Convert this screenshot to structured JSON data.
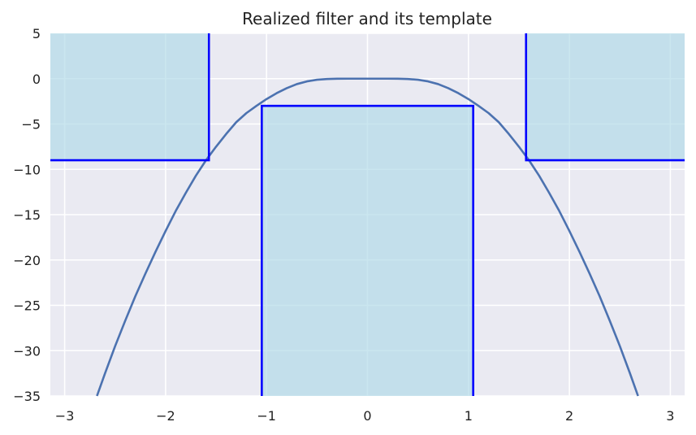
{
  "chart_data": {
    "type": "line",
    "title": "Realized filter and its template",
    "xlabel": "",
    "ylabel": "",
    "xlim": [
      -3.14159,
      3.14159
    ],
    "ylim": [
      -35,
      5
    ],
    "x_ticks": [
      -3,
      -2,
      -1,
      0,
      1,
      2,
      3
    ],
    "x_tick_labels": [
      "−3",
      "−2",
      "−1",
      "0",
      "1",
      "2",
      "3"
    ],
    "y_ticks": [
      5,
      0,
      -5,
      -10,
      -15,
      -20,
      -25,
      -30,
      -35
    ],
    "y_tick_labels": [
      "5",
      "0",
      "−5",
      "−10",
      "−15",
      "−20",
      "−25",
      "−30",
      "−35"
    ],
    "grid": true,
    "legend": "none",
    "series": [
      {
        "kind": "curve",
        "color": "#4c72b0",
        "points": [
          [
            -2.68,
            -35
          ],
          [
            -2.6,
            -32.5
          ],
          [
            -2.5,
            -29.5
          ],
          [
            -2.4,
            -26.7
          ],
          [
            -2.3,
            -24.0
          ],
          [
            -2.2,
            -21.5
          ],
          [
            -2.1,
            -19.1
          ],
          [
            -2.0,
            -16.8
          ],
          [
            -1.9,
            -14.6
          ],
          [
            -1.8,
            -12.6
          ],
          [
            -1.7,
            -10.7
          ],
          [
            -1.6,
            -9.0
          ],
          [
            -1.5,
            -7.5
          ],
          [
            -1.4,
            -6.1
          ],
          [
            -1.3,
            -4.8
          ],
          [
            -1.2,
            -3.8
          ],
          [
            -1.1,
            -3.0
          ],
          [
            -1.0,
            -2.25
          ],
          [
            -0.9,
            -1.6
          ],
          [
            -0.8,
            -1.05
          ],
          [
            -0.7,
            -0.6
          ],
          [
            -0.6,
            -0.3
          ],
          [
            -0.5,
            -0.12
          ],
          [
            -0.4,
            -0.04
          ],
          [
            -0.3,
            -0.01
          ],
          [
            -0.2,
            0.0
          ],
          [
            0.0,
            0.0
          ],
          [
            0.2,
            0.0
          ],
          [
            0.3,
            -0.01
          ],
          [
            0.4,
            -0.04
          ],
          [
            0.5,
            -0.12
          ],
          [
            0.6,
            -0.3
          ],
          [
            0.7,
            -0.6
          ],
          [
            0.8,
            -1.05
          ],
          [
            0.9,
            -1.6
          ],
          [
            1.0,
            -2.25
          ],
          [
            1.1,
            -3.0
          ],
          [
            1.2,
            -3.8
          ],
          [
            1.3,
            -4.8
          ],
          [
            1.4,
            -6.1
          ],
          [
            1.5,
            -7.5
          ],
          [
            1.6,
            -9.0
          ],
          [
            1.7,
            -10.7
          ],
          [
            1.8,
            -12.6
          ],
          [
            1.9,
            -14.6
          ],
          [
            2.0,
            -16.8
          ],
          [
            2.1,
            -19.1
          ],
          [
            2.2,
            -21.5
          ],
          [
            2.3,
            -24.0
          ],
          [
            2.4,
            -26.7
          ],
          [
            2.5,
            -29.5
          ],
          [
            2.6,
            -32.5
          ],
          [
            2.68,
            -35
          ]
        ]
      }
    ],
    "template": {
      "fill_color": "#add8e6",
      "line_color": "#0000ff",
      "regions": [
        {
          "name": "stopband-left",
          "x": [
            -3.14159,
            -1.5708
          ],
          "y": [
            -9,
            5
          ]
        },
        {
          "name": "passband",
          "x": [
            -1.0472,
            1.0472
          ],
          "y": [
            -35,
            -3
          ]
        },
        {
          "name": "stopband-right",
          "x": [
            1.5708,
            3.14159
          ],
          "y": [
            -9,
            5
          ]
        }
      ]
    }
  }
}
